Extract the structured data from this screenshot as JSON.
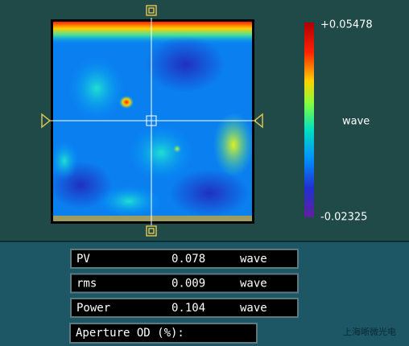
{
  "map": {
    "scale_max": "+0.05478",
    "scale_unit": "wave",
    "scale_min": "-0.02325"
  },
  "readouts": [
    {
      "label": "PV",
      "value": 0.078,
      "unit": "wave"
    },
    {
      "label": "rms",
      "value": 0.009,
      "unit": "wave"
    },
    {
      "label": "Power",
      "value": 0.104,
      "unit": "wave"
    }
  ],
  "aperture_label": "Aperture OD (%):",
  "watermark": "上海晰微光电"
}
